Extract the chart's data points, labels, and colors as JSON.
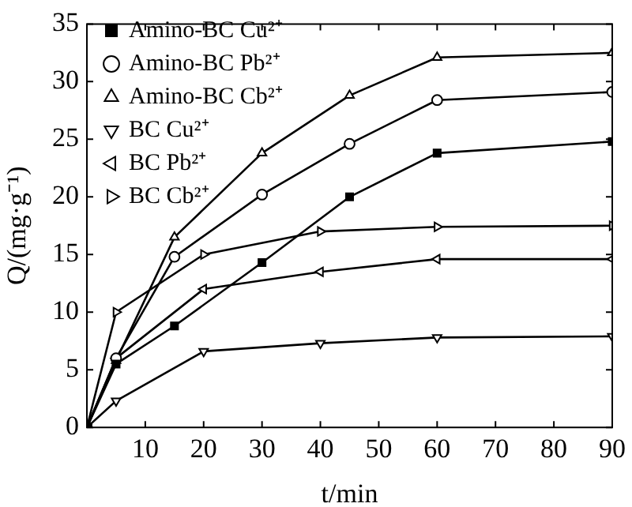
{
  "chart_data": {
    "type": "line",
    "xlabel": "t/min",
    "ylabel": "Q/(mg·g⁻¹)",
    "xlim": [
      0,
      90
    ],
    "xticks": [
      {
        "value": 0,
        "label": null
      },
      10,
      20,
      30,
      40,
      50,
      60,
      70,
      80,
      90
    ],
    "ylim": [
      0,
      35
    ],
    "yticks": [
      0,
      5,
      10,
      15,
      20,
      25,
      30,
      35
    ],
    "grid": false,
    "legend": "top left",
    "series": [
      {
        "name": "Amino-BC Cu²⁺",
        "color": "#000000",
        "marker": "square",
        "x": [
          0,
          5,
          15,
          30,
          45,
          60,
          90
        ],
        "values": [
          0,
          5.5,
          8.8,
          14.3,
          20,
          23.8,
          24.8
        ]
      },
      {
        "name": "Amino-BC Pb²⁺",
        "color": "#000000",
        "marker": "circle",
        "x": [
          0,
          5,
          15,
          30,
          45,
          60,
          90
        ],
        "values": [
          0,
          6,
          14.8,
          20.2,
          24.6,
          28.4,
          29.1
        ]
      },
      {
        "name": "Amino-BC Cb²⁺",
        "color": "#000000",
        "marker": "triangle",
        "x": [
          0,
          5,
          15,
          30,
          45,
          60,
          90
        ],
        "values": [
          0,
          5.8,
          16.5,
          23.8,
          28.8,
          32.1,
          32.5
        ]
      },
      {
        "name": "BC Cu²⁺",
        "color": "#000000",
        "marker": "triangle-down",
        "x": [
          0,
          5,
          20,
          40,
          60,
          90
        ],
        "values": [
          0,
          2.3,
          6.6,
          7.3,
          7.8,
          7.9
        ]
      },
      {
        "name": "BC Pb²⁺",
        "color": "#000000",
        "marker": "triangle-left",
        "x": [
          0,
          5,
          20,
          40,
          60,
          90
        ],
        "values": [
          0,
          6,
          12,
          13.5,
          14.6,
          14.6
        ]
      },
      {
        "name": "BC Cb²⁺",
        "color": "#000000",
        "marker": "triangle-right",
        "x": [
          0,
          5,
          20,
          40,
          60,
          90
        ],
        "values": [
          0,
          10,
          15,
          17,
          17.4,
          17.5
        ]
      }
    ]
  }
}
